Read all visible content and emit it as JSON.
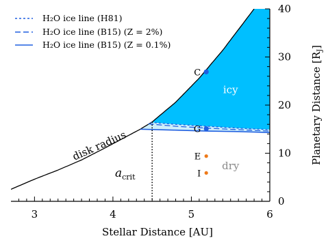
{
  "chart_data": {
    "type": "line",
    "xlabel": "Stellar Distance [AU]",
    "ylabel": "Planetary Distance [R",
    "ylabel_sub": "J",
    "ylabel_close": "]",
    "xlim": [
      2.7,
      6.0
    ],
    "ylim": [
      0,
      40
    ],
    "x_ticks": [
      3,
      4,
      5,
      6
    ],
    "y_ticks": [
      0,
      10,
      20,
      30,
      40
    ],
    "legend_placement": "top-left",
    "legend": [
      {
        "label": "H₂O ice line (H81)",
        "style": "dashed-fine",
        "color": "#1f5fe0"
      },
      {
        "label": "H₂O ice line (B15) (Z = 2%)",
        "style": "dashed",
        "color": "#1f5fe0"
      },
      {
        "label": "H₂O ice line (B15) (Z = 0.1%)",
        "style": "solid",
        "color": "#1f5fe0"
      }
    ],
    "series": [
      {
        "name": "disk radius",
        "color": "#000000",
        "x": [
          2.7,
          3.0,
          3.3,
          3.6,
          3.9,
          4.2,
          4.35,
          4.5,
          4.8,
          5.1,
          5.4,
          5.6,
          5.8
        ],
        "y": [
          2.5,
          4.6,
          6.5,
          8.6,
          11.1,
          13.7,
          15.0,
          16.5,
          20.6,
          25.6,
          31.4,
          35.7,
          40.0
        ]
      },
      {
        "name": "H₂O ice line (H81)",
        "color": "#1f5fe0",
        "x": [
          4.48,
          4.8,
          5.2,
          5.6,
          6.0
        ],
        "y": [
          16.4,
          16.0,
          15.6,
          15.2,
          14.9
        ]
      },
      {
        "name": "H₂O ice line (B15) (Z = 2%)",
        "color": "#1f5fe0",
        "x": [
          4.45,
          4.8,
          5.2,
          5.6,
          6.0
        ],
        "y": [
          16.1,
          15.6,
          15.2,
          14.9,
          14.6
        ]
      },
      {
        "name": "H₂O ice line (B15) (Z = 0.1%)",
        "color": "#1f5fe0",
        "x": [
          4.35,
          4.8,
          5.2,
          5.6,
          6.0
        ],
        "y": [
          15.0,
          14.8,
          14.6,
          14.5,
          14.3
        ]
      }
    ],
    "a_crit": 4.5,
    "moons": [
      {
        "label": "C",
        "x": 5.19,
        "y": 26.9,
        "color": "#1f5fe0"
      },
      {
        "label": "G",
        "x": 5.19,
        "y": 15.1,
        "color": "#1f5fe0"
      },
      {
        "label": "E",
        "x": 5.19,
        "y": 9.4,
        "color": "#ee7a1a"
      },
      {
        "label": "I",
        "x": 5.19,
        "y": 5.9,
        "color": "#ee7a1a"
      }
    ],
    "region_labels": [
      {
        "label": "icy",
        "x": 5.5,
        "y": 22.5,
        "color": "#ffffff"
      },
      {
        "label": "dry",
        "x": 5.5,
        "y": 6.7,
        "color": "#8a8a8a"
      }
    ],
    "annotations": {
      "disk_radius": "disk radius",
      "a_crit_base": "a",
      "a_crit_sub": "crit"
    },
    "colors": {
      "icy_fill": "#00bfff",
      "transition_fill": "#cdeefb",
      "ice_line": "#1f5fe0"
    }
  }
}
